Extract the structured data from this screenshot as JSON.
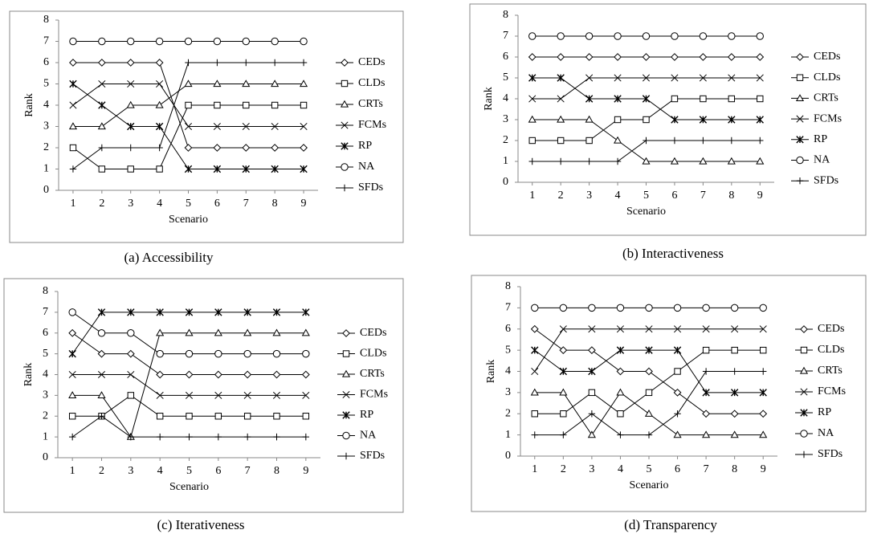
{
  "chart_data": [
    {
      "type": "line",
      "title": "(a) Accessibility",
      "x_label": "Scenario",
      "y_label": "Rank",
      "x": [
        1,
        2,
        3,
        4,
        5,
        6,
        7,
        8,
        9
      ],
      "xlim": [
        0.5,
        9.5
      ],
      "xticks": [
        1,
        2,
        3,
        4,
        5,
        6,
        7,
        8,
        9
      ],
      "ylim": [
        0,
        8
      ],
      "yticks": [
        0,
        1,
        2,
        3,
        4,
        5,
        6,
        7,
        8
      ],
      "legend": "right",
      "series": [
        {
          "name": "CEDs",
          "color": "#000000",
          "marker": "diamond",
          "values": [
            6,
            6,
            6,
            6,
            2,
            2,
            2,
            2,
            2
          ]
        },
        {
          "name": "CLDs",
          "color": "#000000",
          "marker": "square",
          "values": [
            2,
            1,
            1,
            1,
            4,
            4,
            4,
            4,
            4
          ]
        },
        {
          "name": "CRTs",
          "color": "#000000",
          "marker": "triangle",
          "values": [
            3,
            3,
            4,
            4,
            5,
            5,
            5,
            5,
            5
          ]
        },
        {
          "name": "FCMs",
          "color": "#000000",
          "marker": "x",
          "values": [
            4,
            5,
            5,
            5,
            3,
            3,
            3,
            3,
            3
          ]
        },
        {
          "name": "RP",
          "color": "#000000",
          "marker": "asterisk",
          "values": [
            5,
            4,
            3,
            3,
            1,
            1,
            1,
            1,
            1
          ]
        },
        {
          "name": "NA",
          "color": "#000000",
          "marker": "circle",
          "values": [
            7,
            7,
            7,
            7,
            7,
            7,
            7,
            7,
            7
          ]
        },
        {
          "name": "SFDs",
          "color": "#000000",
          "marker": "plus",
          "values": [
            1,
            2,
            2,
            2,
            6,
            6,
            6,
            6,
            6
          ]
        }
      ]
    },
    {
      "type": "line",
      "title": "(b) Interactiveness",
      "x_label": "Scenario",
      "y_label": "Rank",
      "x": [
        1,
        2,
        3,
        4,
        5,
        6,
        7,
        8,
        9
      ],
      "xlim": [
        0.5,
        9.5
      ],
      "xticks": [
        1,
        2,
        3,
        4,
        5,
        6,
        7,
        8,
        9
      ],
      "ylim": [
        0,
        8
      ],
      "yticks": [
        0,
        1,
        2,
        3,
        4,
        5,
        6,
        7,
        8
      ],
      "legend": "right",
      "series": [
        {
          "name": "CEDs",
          "color": "#000000",
          "marker": "diamond",
          "values": [
            6,
            6,
            6,
            6,
            6,
            6,
            6,
            6,
            6
          ]
        },
        {
          "name": "CLDs",
          "color": "#000000",
          "marker": "square",
          "values": [
            2,
            2,
            2,
            3,
            3,
            4,
            4,
            4,
            4
          ]
        },
        {
          "name": "CRTs",
          "color": "#000000",
          "marker": "triangle",
          "values": [
            3,
            3,
            3,
            2,
            1,
            1,
            1,
            1,
            1
          ]
        },
        {
          "name": "FCMs",
          "color": "#000000",
          "marker": "x",
          "values": [
            4,
            4,
            5,
            5,
            5,
            5,
            5,
            5,
            5
          ]
        },
        {
          "name": "RP",
          "color": "#000000",
          "marker": "asterisk",
          "values": [
            5,
            5,
            4,
            4,
            4,
            3,
            3,
            3,
            3
          ]
        },
        {
          "name": "NA",
          "color": "#000000",
          "marker": "circle",
          "values": [
            7,
            7,
            7,
            7,
            7,
            7,
            7,
            7,
            7
          ]
        },
        {
          "name": "SFDs",
          "color": "#000000",
          "marker": "plus",
          "values": [
            1,
            1,
            1,
            1,
            2,
            2,
            2,
            2,
            2
          ]
        }
      ]
    },
    {
      "type": "line",
      "title": "(c) Iterativeness",
      "x_label": "Scenario",
      "y_label": "Rank",
      "x": [
        1,
        2,
        3,
        4,
        5,
        6,
        7,
        8,
        9
      ],
      "xlim": [
        0.5,
        9.5
      ],
      "xticks": [
        1,
        2,
        3,
        4,
        5,
        6,
        7,
        8,
        9
      ],
      "ylim": [
        0,
        8
      ],
      "yticks": [
        0,
        1,
        2,
        3,
        4,
        5,
        6,
        7,
        8
      ],
      "legend": "right",
      "series": [
        {
          "name": "CEDs",
          "color": "#000000",
          "marker": "diamond",
          "values": [
            6,
            5,
            5,
            4,
            4,
            4,
            4,
            4,
            4
          ]
        },
        {
          "name": "CLDs",
          "color": "#000000",
          "marker": "square",
          "values": [
            2,
            2,
            3,
            2,
            2,
            2,
            2,
            2,
            2
          ]
        },
        {
          "name": "CRTs",
          "color": "#000000",
          "marker": "triangle",
          "values": [
            3,
            3,
            1,
            6,
            6,
            6,
            6,
            6,
            6
          ]
        },
        {
          "name": "FCMs",
          "color": "#000000",
          "marker": "x",
          "values": [
            4,
            4,
            4,
            3,
            3,
            3,
            3,
            3,
            3
          ]
        },
        {
          "name": "RP",
          "color": "#000000",
          "marker": "asterisk",
          "values": [
            5,
            7,
            7,
            7,
            7,
            7,
            7,
            7,
            7
          ]
        },
        {
          "name": "NA",
          "color": "#000000",
          "marker": "circle",
          "values": [
            7,
            6,
            6,
            5,
            5,
            5,
            5,
            5,
            5
          ]
        },
        {
          "name": "SFDs",
          "color": "#000000",
          "marker": "plus",
          "values": [
            1,
            2,
            1,
            1,
            1,
            1,
            1,
            1,
            1
          ]
        }
      ]
    },
    {
      "type": "line",
      "title": "(d) Transparency",
      "x_label": "Scenario",
      "y_label": "Rank",
      "x": [
        1,
        2,
        3,
        4,
        5,
        6,
        7,
        8,
        9
      ],
      "xlim": [
        0.5,
        9.5
      ],
      "xticks": [
        1,
        2,
        3,
        4,
        5,
        6,
        7,
        8,
        9
      ],
      "ylim": [
        0,
        8
      ],
      "yticks": [
        0,
        1,
        2,
        3,
        4,
        5,
        6,
        7,
        8
      ],
      "legend": "right",
      "series": [
        {
          "name": "CEDs",
          "color": "#000000",
          "marker": "diamond",
          "values": [
            6,
            5,
            5,
            4,
            4,
            3,
            2,
            2,
            2
          ]
        },
        {
          "name": "CLDs",
          "color": "#000000",
          "marker": "square",
          "values": [
            2,
            2,
            3,
            2,
            3,
            4,
            5,
            5,
            5
          ]
        },
        {
          "name": "CRTs",
          "color": "#000000",
          "marker": "triangle",
          "values": [
            3,
            3,
            1,
            3,
            2,
            1,
            1,
            1,
            1
          ]
        },
        {
          "name": "FCMs",
          "color": "#000000",
          "marker": "x",
          "values": [
            4,
            6,
            6,
            6,
            6,
            6,
            6,
            6,
            6
          ]
        },
        {
          "name": "RP",
          "color": "#000000",
          "marker": "asterisk",
          "values": [
            5,
            4,
            4,
            5,
            5,
            5,
            3,
            3,
            3
          ]
        },
        {
          "name": "NA",
          "color": "#000000",
          "marker": "circle",
          "values": [
            7,
            7,
            7,
            7,
            7,
            7,
            7,
            7,
            7
          ]
        },
        {
          "name": "SFDs",
          "color": "#000000",
          "marker": "plus",
          "values": [
            1,
            1,
            2,
            1,
            1,
            2,
            4,
            4,
            4
          ]
        }
      ]
    }
  ]
}
